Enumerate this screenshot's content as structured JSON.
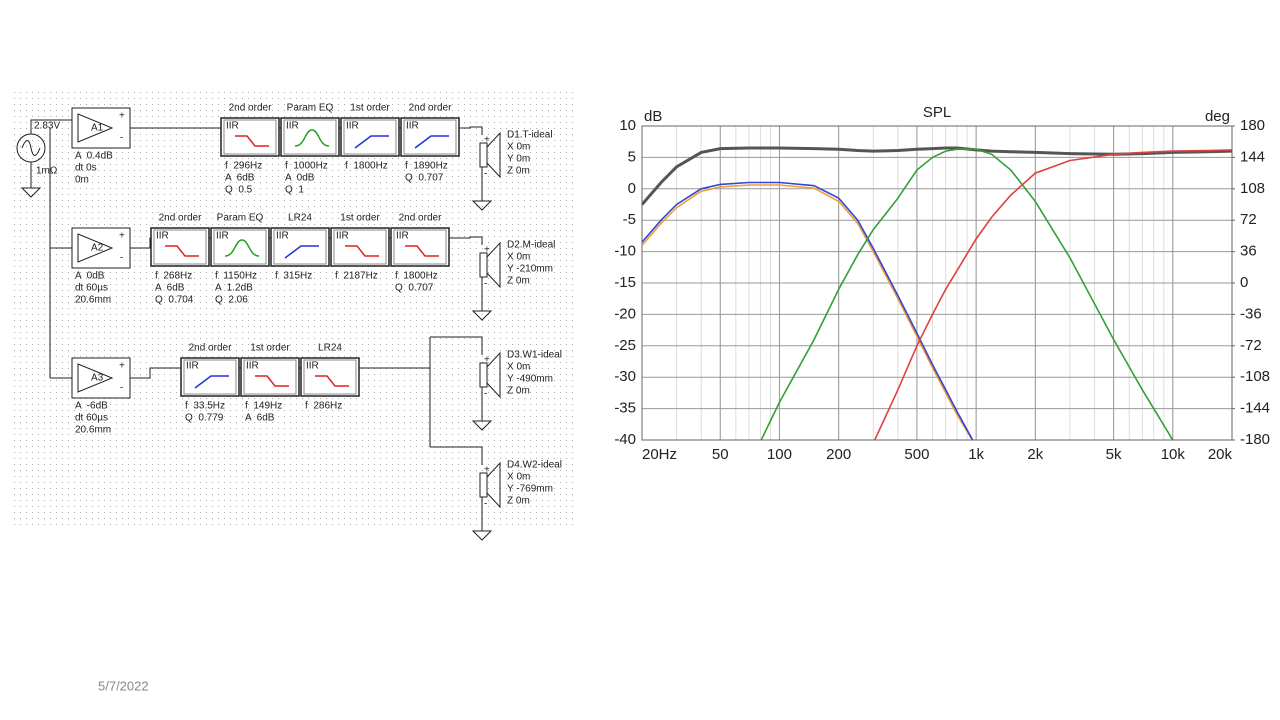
{
  "schematic": {
    "source": {
      "voltage": "2.83V",
      "resistance": "1mΩ"
    },
    "channels": [
      {
        "amp": {
          "name": "A1",
          "params": [
            "A  0.4dB",
            "dt 0s",
            "0m"
          ]
        },
        "blocks": [
          {
            "order": "2nd order",
            "tag": "IIR",
            "params": [
              "f  296Hz",
              "A  6dB",
              "Q  0.5"
            ]
          },
          {
            "order": "Param EQ",
            "tag": "IIR",
            "params": [
              "f  1000Hz",
              "A  0dB",
              "Q  1"
            ]
          },
          {
            "order": "1st order",
            "tag": "IIR",
            "params": [
              "f  1800Hz"
            ]
          },
          {
            "order": "2nd order",
            "tag": "IIR",
            "params": [
              "f  1890Hz",
              "Q  0.707"
            ]
          }
        ],
        "drivers": [
          {
            "name": "D1.T-ideal",
            "params": [
              "X 0m",
              "Y 0m",
              "Z 0m"
            ]
          }
        ]
      },
      {
        "amp": {
          "name": "A2",
          "params": [
            "A  0dB",
            "dt 60µs",
            "20.6mm"
          ]
        },
        "blocks": [
          {
            "order": "2nd order",
            "tag": "IIR",
            "params": [
              "f  268Hz",
              "A  6dB",
              "Q  0.704"
            ]
          },
          {
            "order": "Param EQ",
            "tag": "IIR",
            "params": [
              "f  1150Hz",
              "A  1.2dB",
              "Q  2.06"
            ]
          },
          {
            "order": "LR24",
            "tag": "IIR",
            "params": [
              "f  315Hz"
            ]
          },
          {
            "order": "1st order",
            "tag": "IIR",
            "params": [
              "f  2187Hz"
            ]
          },
          {
            "order": "2nd order",
            "tag": "IIR",
            "params": [
              "f  1800Hz",
              "Q  0.707"
            ]
          }
        ],
        "drivers": [
          {
            "name": "D2.M-ideal",
            "params": [
              "X 0m",
              "Y -210mm",
              "Z 0m"
            ]
          }
        ]
      },
      {
        "amp": {
          "name": "A3",
          "params": [
            "A  -6dB",
            "dt 60µs",
            "20.6mm"
          ]
        },
        "blocks": [
          {
            "order": "2nd order",
            "tag": "IIR",
            "params": [
              "f  33.5Hz",
              "Q  0.779"
            ]
          },
          {
            "order": "1st order",
            "tag": "IIR",
            "params": [
              "f  149Hz",
              "A  6dB"
            ]
          },
          {
            "order": "LR24",
            "tag": "IIR",
            "params": [
              "f  286Hz"
            ]
          }
        ],
        "drivers": [
          {
            "name": "D3.W1-ideal",
            "params": [
              "X 0m",
              "Y -490mm",
              "Z 0m"
            ]
          },
          {
            "name": "D4.W2-ideal",
            "params": [
              "X 0m",
              "Y -769mm",
              "Z 0m"
            ]
          }
        ]
      }
    ]
  },
  "chart_data": {
    "type": "line",
    "title": "SPL",
    "y_label": "dB",
    "y2_label": "deg",
    "log_x": true,
    "grid": true,
    "x": [
      20,
      25,
      30,
      40,
      50,
      70,
      100,
      150,
      200,
      250,
      300,
      400,
      500,
      600,
      700,
      800,
      1000,
      1200,
      1500,
      2000,
      3000,
      5000,
      7000,
      10000,
      15000,
      20000
    ],
    "xlim": [
      20,
      20000
    ],
    "xticks": [
      {
        "value": 20,
        "label": "20Hz"
      },
      50,
      100,
      200,
      500,
      {
        "value": 1000,
        "label": "1k"
      },
      {
        "value": 2000,
        "label": "2k"
      },
      {
        "value": 5000,
        "label": "5k"
      },
      {
        "value": 10000,
        "label": "10k"
      },
      {
        "value": 20000,
        "label": "20k"
      }
    ],
    "ylim": [
      -40,
      10
    ],
    "yticks": [
      -40,
      -35,
      -30,
      -25,
      -20,
      -15,
      -10,
      -5,
      0,
      5,
      10
    ],
    "y2lim": [
      -180,
      180
    ],
    "y2ticks": [
      -180,
      -144,
      -108,
      -72,
      -36,
      0,
      36,
      72,
      108,
      144,
      180
    ],
    "series": [
      {
        "color": "#555555",
        "values": [
          -2.5,
          1,
          3.5,
          5.8,
          6.4,
          6.5,
          6.5,
          6.4,
          6.3,
          6.1,
          6,
          6.1,
          6.3,
          6.4,
          6.5,
          6.5,
          6.2,
          6,
          5.9,
          5.8,
          5.6,
          5.5,
          5.6,
          5.8,
          5.9,
          6
        ]
      },
      {
        "color": "#f0a030",
        "values": [
          -9,
          -5.5,
          -3,
          -0.4,
          0.3,
          0.6,
          0.6,
          0.1,
          -2,
          -5.5,
          -10,
          -17.5,
          -23.5,
          -28.5,
          -32.5,
          -36,
          -41,
          null,
          null,
          null,
          null,
          null,
          null,
          null,
          null,
          null
        ]
      },
      {
        "color": "#3344dd",
        "values": [
          -8.5,
          -5,
          -2.5,
          0,
          0.7,
          1,
          1,
          0.5,
          -1.5,
          -5,
          -9.5,
          -17,
          -23,
          -28,
          -32,
          -35.5,
          -41,
          null,
          null,
          null,
          null,
          null,
          null,
          null,
          null,
          null
        ]
      },
      {
        "color": "#33a033",
        "values": [
          null,
          null,
          null,
          null,
          null,
          -44,
          -34,
          -24,
          -16,
          -10.5,
          -6.5,
          -1.5,
          3,
          5,
          6,
          6.3,
          6.3,
          5.5,
          3,
          -2,
          -11,
          -24,
          -32,
          -40,
          null,
          null
        ]
      },
      {
        "color": "#e04040",
        "values": [
          null,
          null,
          null,
          null,
          null,
          null,
          null,
          null,
          null,
          null,
          -40.5,
          -32,
          -25,
          -20,
          -16,
          -13,
          -8,
          -4.5,
          -1,
          2.5,
          4.5,
          5.5,
          5.8,
          6,
          6.1,
          6.2
        ]
      }
    ]
  },
  "footer": {
    "date": "5/7/2022"
  }
}
